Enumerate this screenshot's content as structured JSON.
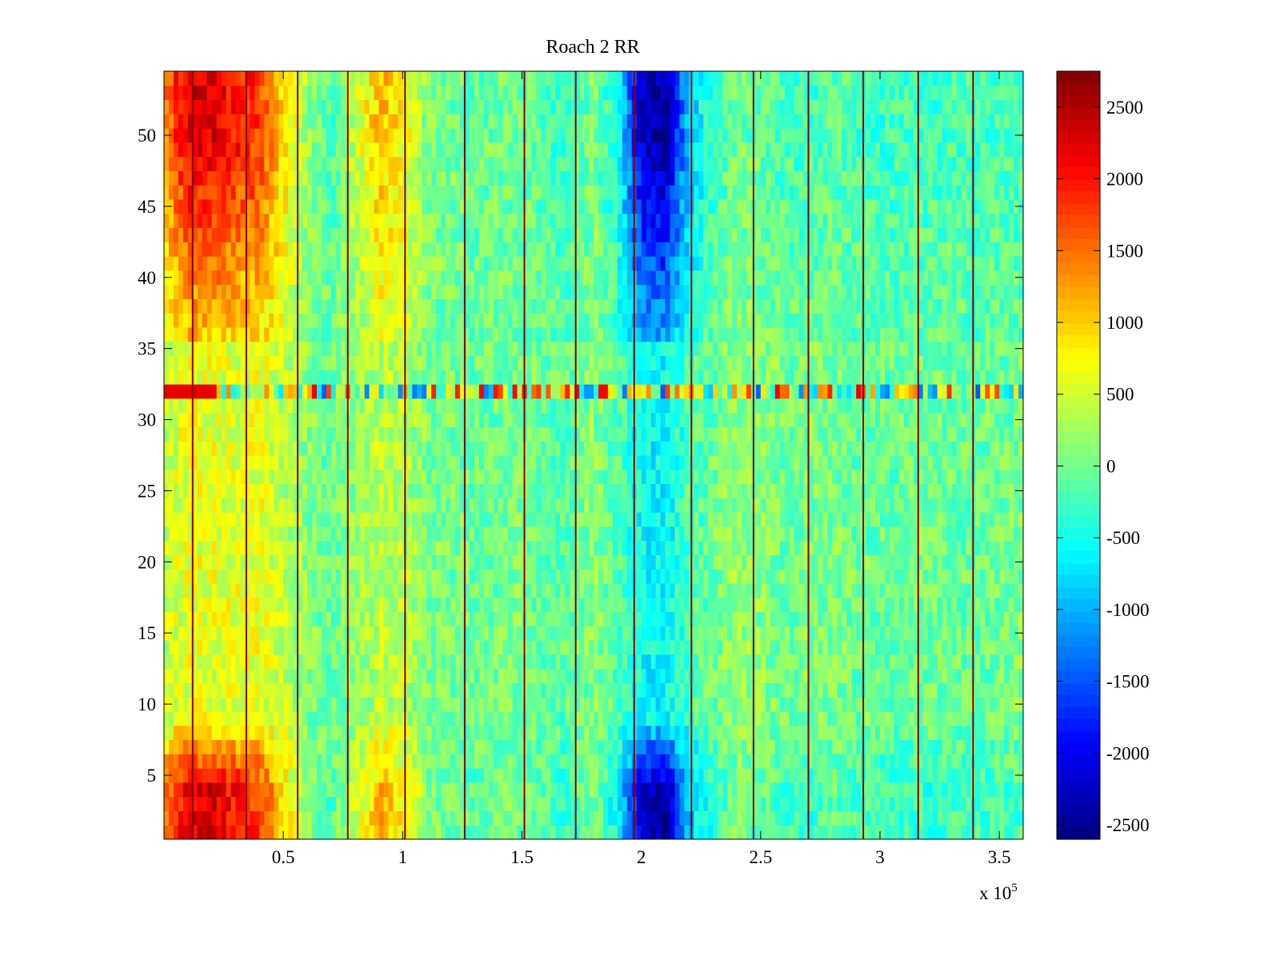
{
  "chart_data": {
    "type": "heatmap",
    "title": "Roach 2 RR",
    "xlabel": "",
    "ylabel": "",
    "x_multiplier_label": "x 10",
    "x_multiplier_exponent": "5",
    "xlim": [
      0,
      360000
    ],
    "ylim": [
      0.5,
      54.5
    ],
    "x_ticks": [
      50000,
      100000,
      150000,
      200000,
      250000,
      300000,
      350000
    ],
    "x_tick_labels": [
      "0.5",
      "1",
      "1.5",
      "2",
      "2.5",
      "3",
      "3.5"
    ],
    "y_ticks": [
      5,
      10,
      15,
      20,
      25,
      30,
      35,
      40,
      45,
      50
    ],
    "y_tick_labels": [
      "5",
      "10",
      "15",
      "20",
      "25",
      "30",
      "35",
      "40",
      "45",
      "50"
    ],
    "rows": 54,
    "colormap": "jet",
    "colorbar": {
      "clim": [
        -2600,
        2750
      ],
      "ticks": [
        2500,
        2000,
        1500,
        1000,
        500,
        0,
        -500,
        -1000,
        -1500,
        -2000,
        -2500
      ],
      "tick_labels": [
        "2500",
        "2000",
        "1500",
        "1000",
        "500",
        "0",
        "-500",
        "-1000",
        "-1500",
        "-2000",
        "-2500"
      ],
      "placement": "right"
    },
    "column_profile": {
      "x": [
        0,
        10000,
        20000,
        30000,
        40000,
        50000,
        60000,
        70000,
        80000,
        90000,
        100000,
        110000,
        120000,
        130000,
        140000,
        150000,
        160000,
        170000,
        180000,
        190000,
        200000,
        210000,
        220000,
        230000,
        240000,
        250000,
        260000,
        270000,
        280000,
        290000,
        300000,
        310000,
        320000,
        330000,
        340000,
        350000,
        360000
      ],
      "edge_rows_value": [
        1400,
        2200,
        2300,
        2000,
        1800,
        900,
        200,
        -200,
        400,
        1100,
        800,
        100,
        0,
        -100,
        0,
        0,
        -200,
        -300,
        100,
        -600,
        -2200,
        -2500,
        -900,
        -300,
        0,
        -100,
        -200,
        -300,
        -100,
        -200,
        -300,
        -250,
        -300,
        -200,
        -250,
        -200,
        -250
      ],
      "middle_rows_value": [
        300,
        450,
        400,
        400,
        500,
        350,
        100,
        -50,
        100,
        300,
        300,
        50,
        0,
        -50,
        0,
        50,
        -50,
        -100,
        100,
        -100,
        -350,
        -400,
        -150,
        0,
        200,
        150,
        0,
        100,
        50,
        0,
        -50,
        0,
        50,
        0,
        -50,
        0,
        100
      ]
    },
    "row_32_highlight_value_range": [
      -1500,
      2200
    ],
    "vertical_stripe_lines_x": [
      12000,
      34500,
      56000,
      77000,
      101000,
      126000,
      151000,
      172500,
      197000,
      221000,
      247000,
      270000,
      293000,
      316000,
      339000
    ],
    "stripe_value": 2750
  }
}
